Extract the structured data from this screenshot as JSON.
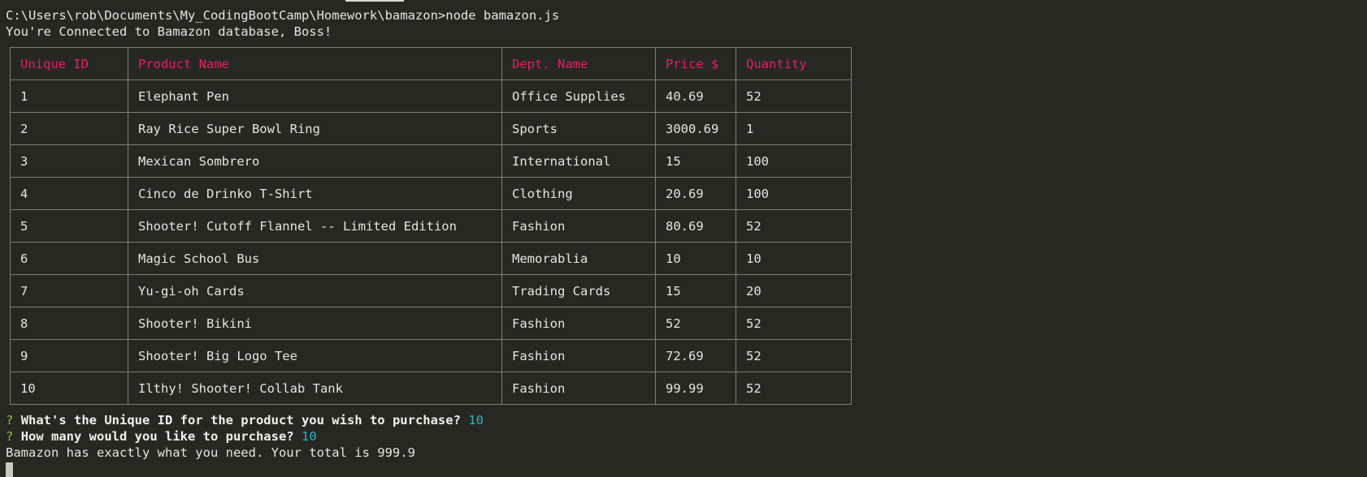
{
  "terminal": {
    "command_line": "C:\\Users\\rob\\Documents\\My_CodingBootCamp\\Homework\\bamazon>node bamazon.js",
    "connect_message": "You're Connected to Bamazon database, Boss!"
  },
  "table": {
    "headers": [
      "Unique ID",
      "Product Name",
      "Dept. Name",
      "Price $",
      "Quantity"
    ],
    "rows": [
      [
        "1",
        "Elephant Pen",
        "Office Supplies",
        "40.69",
        "52"
      ],
      [
        "2",
        "Ray Rice Super Bowl Ring",
        "Sports",
        "3000.69",
        "1"
      ],
      [
        "3",
        "Mexican Sombrero",
        "International",
        "15",
        "100"
      ],
      [
        "4",
        "Cinco de Drinko T-Shirt",
        "Clothing",
        "20.69",
        "100"
      ],
      [
        "5",
        "Shooter! Cutoff Flannel -- Limited Edition",
        "Fashion",
        "80.69",
        "52"
      ],
      [
        "6",
        "Magic School Bus",
        "Memorablia",
        "10",
        "10"
      ],
      [
        "7",
        "Yu-gi-oh Cards",
        "Trading Cards",
        "15",
        "20"
      ],
      [
        "8",
        "Shooter! Bikini",
        "Fashion",
        "52",
        "52"
      ],
      [
        "9",
        "Shooter! Big Logo Tee",
        "Fashion",
        "72.69",
        "52"
      ],
      [
        "10",
        "Ilthy! Shooter! Collab Tank",
        "Fashion",
        "99.99",
        "52"
      ]
    ]
  },
  "prompts": [
    {
      "mark": "?",
      "question": "What's the Unique ID for the product you wish to purchase?",
      "answer": "10"
    },
    {
      "mark": "?",
      "question": "How many would you like to purchase?",
      "answer": "10"
    }
  ],
  "result_message": "Bamazon has exactly what you need. Your total is 999.9",
  "colors": {
    "background": "#272822",
    "header_text": "#e91e63",
    "prompt_mark": "#8bc34a",
    "answer_text": "#26b5c9"
  }
}
